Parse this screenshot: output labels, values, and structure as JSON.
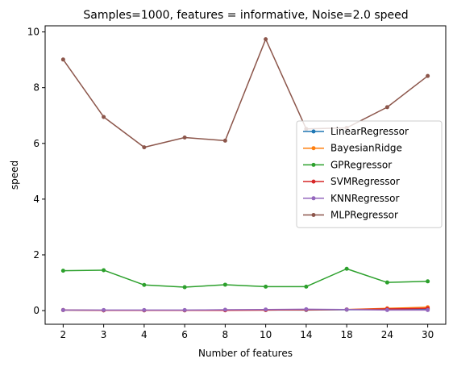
{
  "chart_data": {
    "type": "line",
    "title": "Samples=1000, features = informative, Noise=2.0 speed",
    "xlabel": "Number of features",
    "ylabel": "speed",
    "categories": [
      "2",
      "3",
      "4",
      "6",
      "8",
      "10",
      "14",
      "18",
      "24",
      "30"
    ],
    "ylim": [
      -0.49,
      10.22
    ],
    "yticks": [
      0,
      2,
      4,
      6,
      8,
      10
    ],
    "grid": false,
    "legend_position": "center-right",
    "series": [
      {
        "name": "LinearRegressor",
        "color": "#1f77b4",
        "values": [
          0.02,
          0.01,
          0.01,
          0.01,
          0.02,
          0.02,
          0.02,
          0.03,
          0.04,
          0.05
        ]
      },
      {
        "name": "BayesianRidge",
        "color": "#ff7f0e",
        "values": [
          0.02,
          0.01,
          0.01,
          0.01,
          0.02,
          0.02,
          0.03,
          0.04,
          0.08,
          0.12
        ]
      },
      {
        "name": "GPRegressor",
        "color": "#2ca02c",
        "values": [
          1.43,
          1.45,
          0.92,
          0.84,
          0.93,
          0.86,
          0.86,
          1.5,
          1.01,
          1.05
        ]
      },
      {
        "name": "SVMRegressor",
        "color": "#d62728",
        "values": [
          0.02,
          0.01,
          0.01,
          0.01,
          0.01,
          0.02,
          0.03,
          0.04,
          0.06,
          0.08
        ]
      },
      {
        "name": "KNNRegressor",
        "color": "#9467bd",
        "values": [
          0.02,
          0.02,
          0.02,
          0.02,
          0.03,
          0.04,
          0.05,
          0.04,
          0.02,
          0.02
        ]
      },
      {
        "name": "MLPRegressor",
        "color": "#8c564b",
        "values": [
          9.01,
          6.95,
          5.86,
          6.21,
          6.1,
          9.74,
          6.52,
          6.56,
          7.3,
          8.42
        ]
      }
    ]
  }
}
